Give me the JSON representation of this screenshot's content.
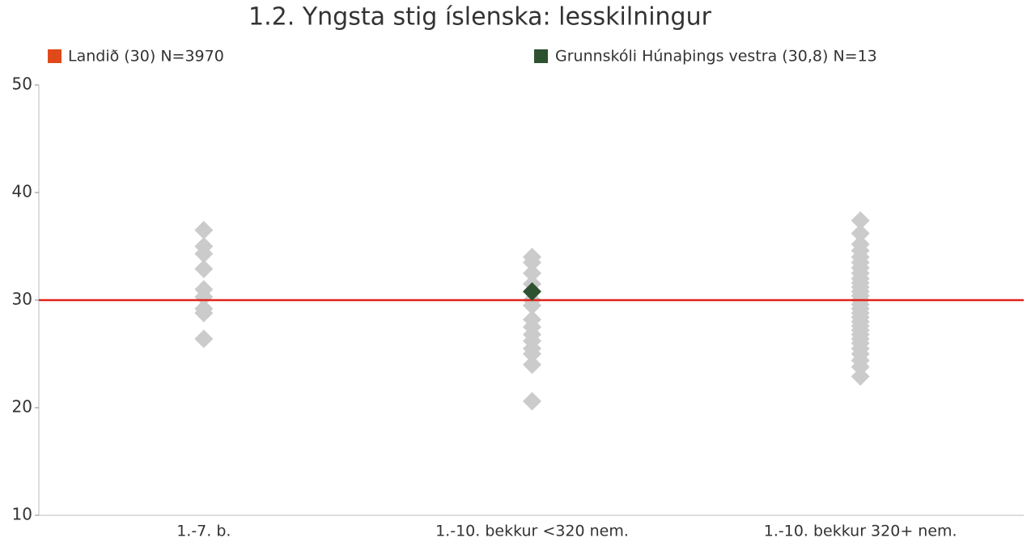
{
  "chart_data": {
    "type": "strip",
    "title": "1.2. Yngsta stig íslenska: lesskilningur",
    "categories": [
      "1.-7. b.",
      "1.-10. bekkur <320 nem.",
      "1.-10. bekkur 320+ nem."
    ],
    "reference_line": {
      "name": "Landið (30) N=3970",
      "value": 30,
      "color": "#e2231a",
      "legend_color": "#e04a1a"
    },
    "series": [
      {
        "name": "Grunnskóli Húnaþings vestra (30,8) N=13",
        "color": "#2e5230",
        "values": [
          null,
          30.8,
          null
        ]
      }
    ],
    "other_points": {
      "color": "#cbcbcb",
      "values": [
        [
          36.5,
          35.0,
          34.3,
          32.9,
          31.0,
          30.3,
          29.2,
          28.8,
          26.4
        ],
        [
          34.0,
          33.5,
          32.5,
          31.5,
          30.0,
          29.5,
          28.2,
          27.5,
          26.8,
          26.2,
          25.5,
          25.0,
          24.0,
          20.6
        ],
        [
          37.4,
          36.2,
          35.2,
          34.6,
          34.0,
          33.5,
          33.0,
          32.5,
          32.0,
          31.6,
          31.2,
          30.8,
          30.4,
          30.0,
          29.6,
          29.2,
          28.8,
          28.4,
          28.0,
          27.6,
          27.2,
          26.8,
          26.4,
          26.0,
          25.5,
          25.0,
          24.4,
          23.8,
          22.9
        ]
      ]
    },
    "ylim": [
      10,
      50
    ],
    "yticks": [
      10,
      20,
      30,
      40,
      50
    ]
  }
}
